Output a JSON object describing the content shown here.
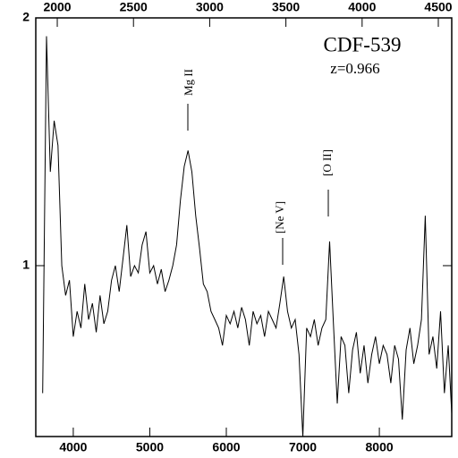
{
  "chart_data": {
    "type": "line",
    "title": "CDF-539",
    "subtitle": "z=0.966",
    "annotations": [
      "Mg II",
      "[Ne V]",
      "[O II]"
    ],
    "x": [
      3600,
      3650,
      3700,
      3750,
      3800,
      3850,
      3900,
      3950,
      4000,
      4050,
      4100,
      4150,
      4200,
      4250,
      4300,
      4350,
      4400,
      4450,
      4500,
      4550,
      4600,
      4650,
      4700,
      4750,
      4800,
      4850,
      4900,
      4950,
      5000,
      5050,
      5100,
      5150,
      5200,
      5250,
      5300,
      5350,
      5400,
      5450,
      5500,
      5550,
      5600,
      5650,
      5700,
      5750,
      5800,
      5850,
      5900,
      5950,
      6000,
      6050,
      6100,
      6150,
      6200,
      6250,
      6300,
      6350,
      6400,
      6450,
      6500,
      6550,
      6600,
      6650,
      6700,
      6750,
      6800,
      6850,
      6900,
      6950,
      7000,
      7050,
      7100,
      7150,
      7200,
      7250,
      7300,
      7350,
      7400,
      7450,
      7500,
      7550,
      7600,
      7650,
      7700,
      7750,
      7800,
      7850,
      7900,
      7950,
      8000,
      8050,
      8100,
      8150,
      8200,
      8250,
      8300,
      8350,
      8400,
      8450,
      8500,
      8550,
      8600,
      8650,
      8700,
      8750,
      8800,
      8850,
      8900,
      8950
    ],
    "values": [
      0.7,
      1.9,
      1.3,
      1.5,
      1.4,
      1.0,
      0.92,
      0.96,
      0.82,
      0.88,
      0.84,
      0.95,
      0.86,
      0.9,
      0.83,
      0.92,
      0.85,
      0.88,
      0.96,
      1.0,
      0.93,
      1.02,
      1.12,
      0.97,
      1.0,
      0.98,
      1.06,
      1.1,
      0.98,
      1.0,
      0.95,
      0.99,
      0.93,
      0.96,
      1.0,
      1.06,
      1.2,
      1.32,
      1.38,
      1.3,
      1.15,
      1.05,
      0.95,
      0.93,
      0.88,
      0.86,
      0.84,
      0.8,
      0.87,
      0.85,
      0.88,
      0.84,
      0.89,
      0.86,
      0.8,
      0.88,
      0.85,
      0.87,
      0.82,
      0.88,
      0.86,
      0.84,
      0.9,
      0.97,
      0.88,
      0.84,
      0.86,
      0.78,
      0.62,
      0.84,
      0.82,
      0.86,
      0.8,
      0.84,
      0.86,
      1.07,
      0.85,
      0.68,
      0.82,
      0.8,
      0.7,
      0.79,
      0.83,
      0.74,
      0.8,
      0.72,
      0.78,
      0.82,
      0.76,
      0.8,
      0.78,
      0.72,
      0.8,
      0.77,
      0.65,
      0.79,
      0.84,
      0.76,
      0.8,
      0.86,
      1.15,
      0.78,
      0.82,
      0.75,
      0.88,
      0.7,
      0.8,
      0.65
    ],
    "color": "#000000",
    "xlim": [
      3510,
      8946
    ],
    "xticks": [
      4000,
      5000,
      6000,
      7000,
      8000
    ],
    "x2lim": [
      1859,
      4588
    ],
    "x2ticks": [
      2000,
      2500,
      3000,
      3500,
      4000,
      4500
    ],
    "ylim": [
      0.62,
      2
    ],
    "yticks": [
      1,
      2
    ],
    "log_y": true
  }
}
